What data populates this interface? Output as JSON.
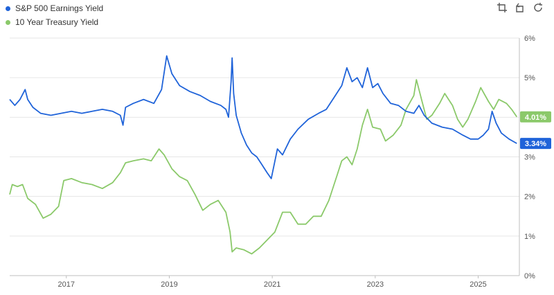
{
  "chart_data": {
    "type": "line",
    "x_range": [
      2015.9,
      2025.8
    ],
    "ylim": [
      0,
      6
    ],
    "x_ticks": [
      {
        "value": 2017,
        "label": "2017"
      },
      {
        "value": 2019,
        "label": "2019"
      },
      {
        "value": 2021,
        "label": "2021"
      },
      {
        "value": 2023,
        "label": "2023"
      },
      {
        "value": 2025,
        "label": "2025"
      }
    ],
    "y_ticks": [
      {
        "value": 0,
        "label": "0%"
      },
      {
        "value": 1,
        "label": "1%"
      },
      {
        "value": 2,
        "label": "2%"
      },
      {
        "value": 3,
        "label": "3%"
      },
      {
        "value": 4,
        "label": "4%"
      },
      {
        "value": 5,
        "label": "5%"
      },
      {
        "value": 6,
        "label": "6%"
      }
    ],
    "grid": "horizontal",
    "legend_position": "top-left",
    "series": [
      {
        "name": "S&P 500 Earnings Yield",
        "color": "#1f63d9",
        "last_value_label": "3.34%",
        "points": [
          [
            2015.9,
            4.45
          ],
          [
            2016.0,
            4.3
          ],
          [
            2016.1,
            4.45
          ],
          [
            2016.2,
            4.7
          ],
          [
            2016.25,
            4.45
          ],
          [
            2016.35,
            4.25
          ],
          [
            2016.5,
            4.1
          ],
          [
            2016.7,
            4.05
          ],
          [
            2016.9,
            4.1
          ],
          [
            2017.1,
            4.15
          ],
          [
            2017.3,
            4.1
          ],
          [
            2017.5,
            4.15
          ],
          [
            2017.7,
            4.2
          ],
          [
            2017.9,
            4.15
          ],
          [
            2018.05,
            4.05
          ],
          [
            2018.1,
            3.8
          ],
          [
            2018.15,
            4.25
          ],
          [
            2018.3,
            4.35
          ],
          [
            2018.5,
            4.45
          ],
          [
            2018.7,
            4.35
          ],
          [
            2018.85,
            4.7
          ],
          [
            2018.95,
            5.55
          ],
          [
            2019.05,
            5.1
          ],
          [
            2019.2,
            4.8
          ],
          [
            2019.4,
            4.65
          ],
          [
            2019.6,
            4.55
          ],
          [
            2019.8,
            4.4
          ],
          [
            2020.0,
            4.3
          ],
          [
            2020.1,
            4.2
          ],
          [
            2020.15,
            4.0
          ],
          [
            2020.2,
            4.9
          ],
          [
            2020.22,
            5.5
          ],
          [
            2020.25,
            4.6
          ],
          [
            2020.3,
            4.05
          ],
          [
            2020.4,
            3.6
          ],
          [
            2020.5,
            3.3
          ],
          [
            2020.6,
            3.1
          ],
          [
            2020.7,
            3.0
          ],
          [
            2020.8,
            2.8
          ],
          [
            2020.9,
            2.6
          ],
          [
            2020.98,
            2.45
          ],
          [
            2021.1,
            3.2
          ],
          [
            2021.2,
            3.05
          ],
          [
            2021.35,
            3.45
          ],
          [
            2021.5,
            3.7
          ],
          [
            2021.7,
            3.95
          ],
          [
            2021.9,
            4.1
          ],
          [
            2022.05,
            4.2
          ],
          [
            2022.2,
            4.5
          ],
          [
            2022.35,
            4.8
          ],
          [
            2022.45,
            5.25
          ],
          [
            2022.55,
            4.9
          ],
          [
            2022.65,
            5.0
          ],
          [
            2022.75,
            4.75
          ],
          [
            2022.85,
            5.25
          ],
          [
            2022.95,
            4.75
          ],
          [
            2023.05,
            4.85
          ],
          [
            2023.15,
            4.6
          ],
          [
            2023.3,
            4.35
          ],
          [
            2023.45,
            4.3
          ],
          [
            2023.6,
            4.15
          ],
          [
            2023.75,
            4.1
          ],
          [
            2023.85,
            4.3
          ],
          [
            2023.95,
            4.05
          ],
          [
            2024.1,
            3.85
          ],
          [
            2024.3,
            3.75
          ],
          [
            2024.5,
            3.7
          ],
          [
            2024.7,
            3.55
          ],
          [
            2024.85,
            3.45
          ],
          [
            2025.0,
            3.45
          ],
          [
            2025.1,
            3.55
          ],
          [
            2025.2,
            3.7
          ],
          [
            2025.27,
            4.15
          ],
          [
            2025.35,
            3.85
          ],
          [
            2025.45,
            3.6
          ],
          [
            2025.6,
            3.45
          ],
          [
            2025.75,
            3.34
          ]
        ]
      },
      {
        "name": "10 Year Treasury Yield",
        "color": "#8bc96a",
        "last_value_label": "4.01%",
        "points": [
          [
            2015.9,
            2.05
          ],
          [
            2015.95,
            2.3
          ],
          [
            2016.05,
            2.25
          ],
          [
            2016.15,
            2.3
          ],
          [
            2016.25,
            1.95
          ],
          [
            2016.4,
            1.8
          ],
          [
            2016.55,
            1.45
          ],
          [
            2016.7,
            1.55
          ],
          [
            2016.85,
            1.75
          ],
          [
            2016.95,
            2.4
          ],
          [
            2017.1,
            2.45
          ],
          [
            2017.3,
            2.35
          ],
          [
            2017.5,
            2.3
          ],
          [
            2017.7,
            2.2
          ],
          [
            2017.9,
            2.35
          ],
          [
            2018.05,
            2.6
          ],
          [
            2018.15,
            2.85
          ],
          [
            2018.3,
            2.9
          ],
          [
            2018.5,
            2.95
          ],
          [
            2018.65,
            2.9
          ],
          [
            2018.8,
            3.2
          ],
          [
            2018.9,
            3.05
          ],
          [
            2019.05,
            2.7
          ],
          [
            2019.2,
            2.5
          ],
          [
            2019.35,
            2.4
          ],
          [
            2019.5,
            2.05
          ],
          [
            2019.65,
            1.65
          ],
          [
            2019.8,
            1.8
          ],
          [
            2019.95,
            1.9
          ],
          [
            2020.1,
            1.6
          ],
          [
            2020.18,
            1.1
          ],
          [
            2020.22,
            0.6
          ],
          [
            2020.3,
            0.7
          ],
          [
            2020.45,
            0.65
          ],
          [
            2020.6,
            0.55
          ],
          [
            2020.75,
            0.7
          ],
          [
            2020.9,
            0.9
          ],
          [
            2021.05,
            1.1
          ],
          [
            2021.2,
            1.6
          ],
          [
            2021.35,
            1.6
          ],
          [
            2021.5,
            1.3
          ],
          [
            2021.65,
            1.3
          ],
          [
            2021.8,
            1.5
          ],
          [
            2021.95,
            1.5
          ],
          [
            2022.1,
            1.9
          ],
          [
            2022.25,
            2.5
          ],
          [
            2022.35,
            2.9
          ],
          [
            2022.45,
            3.0
          ],
          [
            2022.55,
            2.8
          ],
          [
            2022.65,
            3.2
          ],
          [
            2022.75,
            3.8
          ],
          [
            2022.85,
            4.2
          ],
          [
            2022.95,
            3.75
          ],
          [
            2023.1,
            3.7
          ],
          [
            2023.2,
            3.4
          ],
          [
            2023.35,
            3.55
          ],
          [
            2023.5,
            3.8
          ],
          [
            2023.6,
            4.2
          ],
          [
            2023.75,
            4.55
          ],
          [
            2023.8,
            4.95
          ],
          [
            2023.9,
            4.45
          ],
          [
            2024.0,
            3.95
          ],
          [
            2024.1,
            4.05
          ],
          [
            2024.25,
            4.35
          ],
          [
            2024.35,
            4.6
          ],
          [
            2024.5,
            4.3
          ],
          [
            2024.6,
            3.95
          ],
          [
            2024.7,
            3.75
          ],
          [
            2024.8,
            3.95
          ],
          [
            2024.95,
            4.4
          ],
          [
            2025.05,
            4.75
          ],
          [
            2025.2,
            4.4
          ],
          [
            2025.3,
            4.2
          ],
          [
            2025.4,
            4.45
          ],
          [
            2025.55,
            4.35
          ],
          [
            2025.65,
            4.2
          ],
          [
            2025.75,
            4.01
          ]
        ]
      }
    ]
  },
  "toolbar": {
    "icons": [
      "crop-icon",
      "undo-icon",
      "refresh-icon"
    ]
  }
}
